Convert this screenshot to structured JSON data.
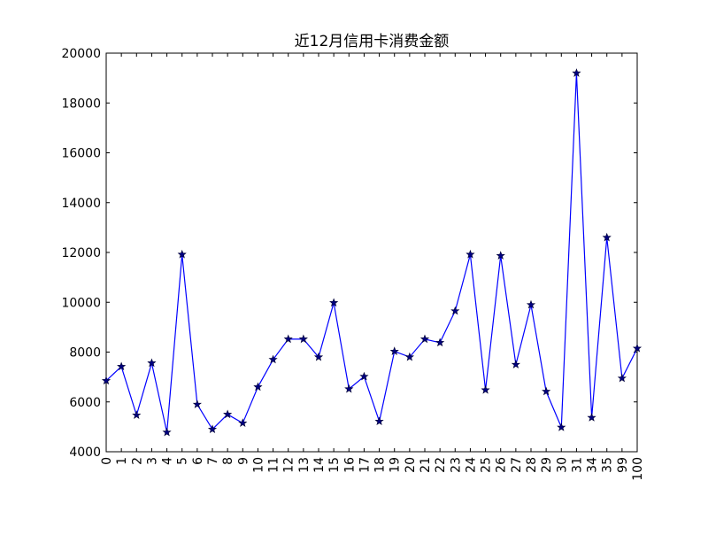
{
  "chart_data": {
    "type": "line",
    "title": "近12月信用卡消费金额",
    "xlabel": "",
    "ylabel": "",
    "ylim": [
      4000,
      20000
    ],
    "yticks": [
      "4000",
      "6000",
      "8000",
      "10000",
      "12000",
      "14000",
      "16000",
      "18000",
      "20000"
    ],
    "grid": false,
    "legend": "none",
    "marker": "star",
    "line_color": "#0000ff",
    "marker_color": "#000080",
    "categories": [
      "0",
      "1",
      "2",
      "3",
      "4",
      "5",
      "6",
      "7",
      "8",
      "9",
      "10",
      "11",
      "12",
      "13",
      "14",
      "15",
      "16",
      "17",
      "18",
      "19",
      "20",
      "21",
      "22",
      "23",
      "24",
      "25",
      "26",
      "27",
      "28",
      "29",
      "30",
      "31",
      "34",
      "35",
      "99",
      "100"
    ],
    "values": [
      6850,
      7420,
      5470,
      7560,
      4780,
      11920,
      5900,
      4900,
      5500,
      5150,
      6600,
      7700,
      8520,
      8520,
      7800,
      9980,
      6520,
      7020,
      5220,
      8030,
      7800,
      8520,
      8380,
      9650,
      11920,
      6480,
      11870,
      7500,
      9900,
      6420,
      4980,
      19200,
      5370,
      12600,
      6950,
      8150
    ]
  }
}
